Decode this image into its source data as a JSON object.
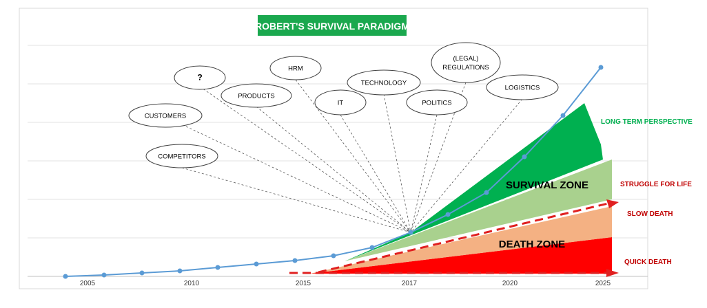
{
  "title": "ROBERT'S SURVIVAL PARADIGM",
  "colors": {
    "title_bg": "#1aa84e",
    "line": "#5b9bd5",
    "dark_green": "#00b050",
    "light_green": "#a9d18e",
    "salmon": "#f4b183",
    "red": "#ff0000",
    "dash_red": "#e02020",
    "label_green": "#00b050",
    "label_red": "#c00000"
  },
  "x_ticks": [
    "2005",
    "2010",
    "2015",
    "2017",
    "2020",
    "2025"
  ],
  "factors": [
    "?",
    "HRM",
    "(LEGAL)\nREGULATIONS",
    "PRODUCTS",
    "TECHNOLOGY",
    "LOGISTICS",
    "IT",
    "POLITICS",
    "CUSTOMERS",
    "COMPETITORS"
  ],
  "zones": {
    "survival": "SURVIVAL ZONE",
    "death": "DEATH ZONE"
  },
  "side_labels": {
    "long_term": "LONG TERM PERSPECTIVE",
    "struggle": "STRUGGLE FOR LIFE",
    "slow_death": "SLOW DEATH",
    "quick_death": "QUICK DEATH"
  }
}
